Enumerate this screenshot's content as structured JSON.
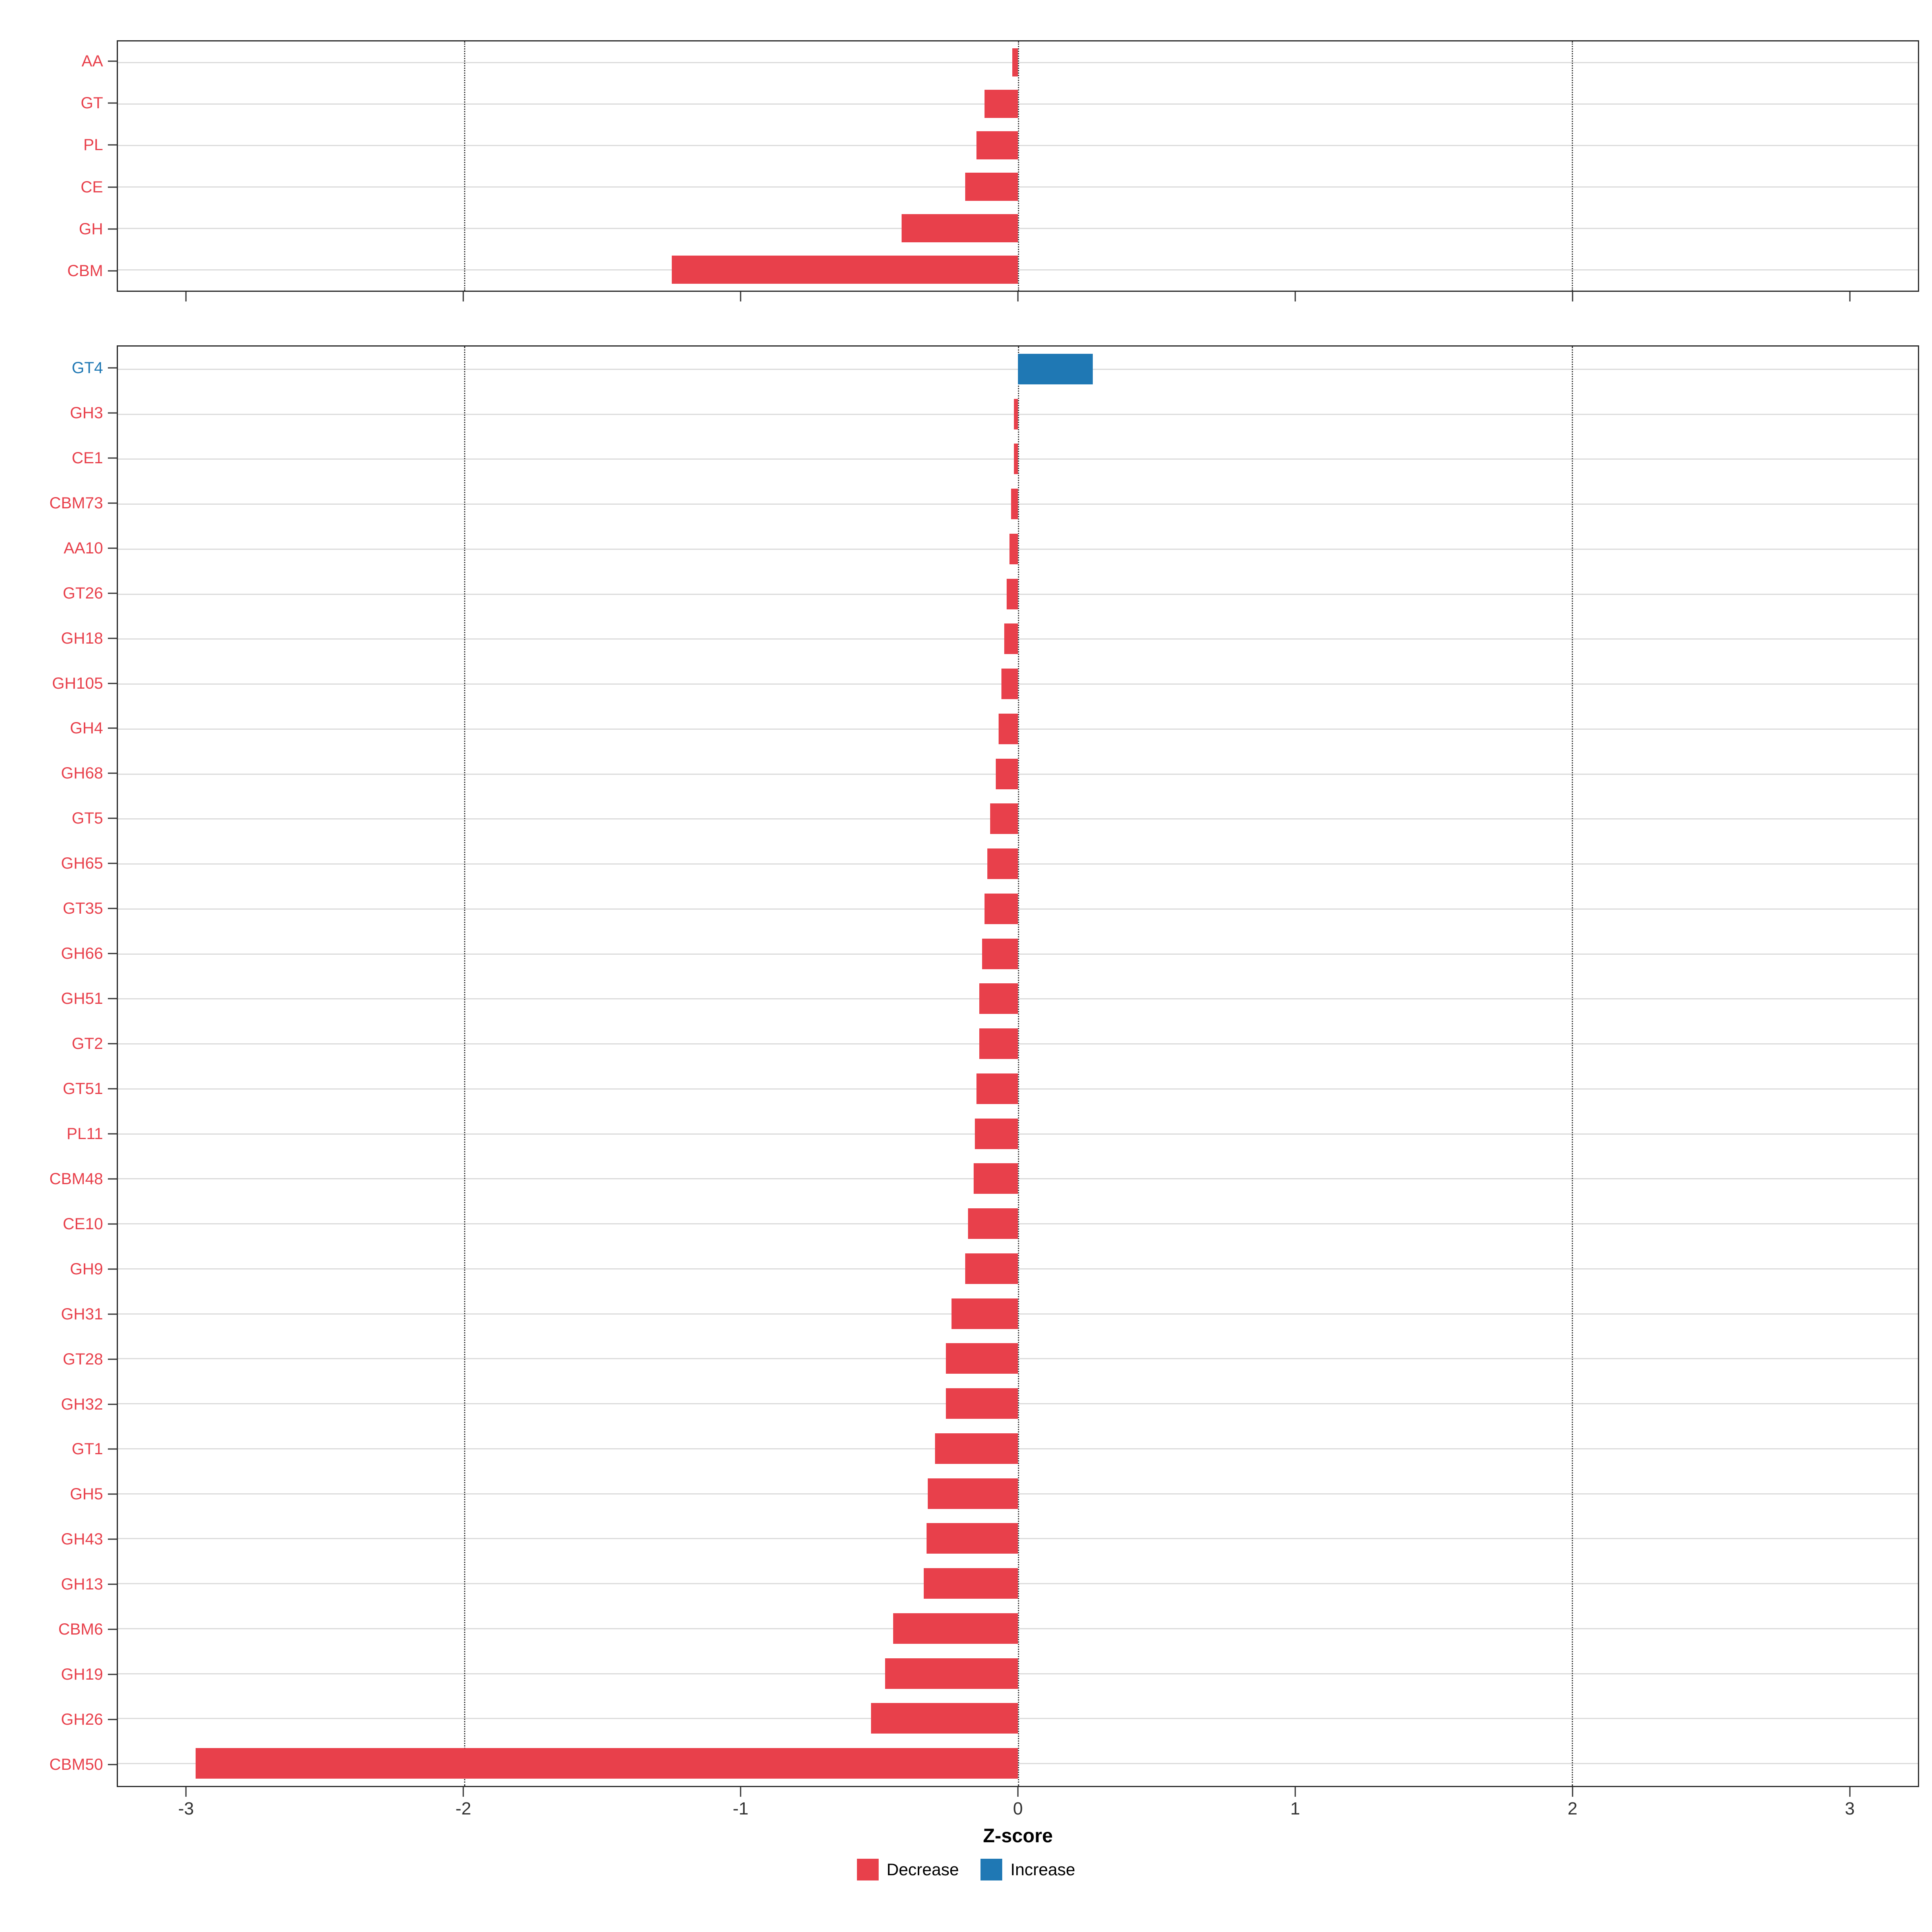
{
  "chart_data": {
    "type": "bar",
    "orientation": "horizontal",
    "xlabel": "Z-score",
    "xlim": [
      -3.25,
      3.25
    ],
    "xticks": [
      -3,
      -2,
      -1,
      0,
      1,
      2,
      3
    ],
    "reference_lines": [
      -2,
      0,
      2
    ],
    "grid": "horizontal-only",
    "legend_position": "bottom",
    "colors": {
      "decrease": "#E8404B",
      "increase": "#1F78B4"
    },
    "legend": [
      {
        "label": "Decrease",
        "color": "#E8404B"
      },
      {
        "label": "Increase",
        "color": "#1F78B4"
      }
    ],
    "panels": [
      {
        "name": "cazyme-class-panel",
        "categories": [
          "AA",
          "GT",
          "PL",
          "CE",
          "GH",
          "CBM"
        ],
        "values": [
          -0.02,
          -0.12,
          -0.15,
          -0.19,
          -0.42,
          -1.25
        ]
      },
      {
        "name": "cazyme-family-panel",
        "categories": [
          "GT4",
          "GH3",
          "CE1",
          "CBM73",
          "AA10",
          "GT26",
          "GH18",
          "GH105",
          "GH4",
          "GH68",
          "GT5",
          "GH65",
          "GT35",
          "GH66",
          "GH51",
          "GT2",
          "GT51",
          "PL11",
          "CBM48",
          "CE10",
          "GH9",
          "GH31",
          "GT28",
          "GH32",
          "GT1",
          "GH5",
          "GH43",
          "GH13",
          "CBM6",
          "GH19",
          "GH26",
          "CBM50"
        ],
        "values": [
          0.27,
          -0.015,
          -0.015,
          -0.025,
          -0.03,
          -0.04,
          -0.05,
          -0.06,
          -0.07,
          -0.08,
          -0.1,
          -0.11,
          -0.12,
          -0.13,
          -0.14,
          -0.14,
          -0.15,
          -0.155,
          -0.16,
          -0.18,
          -0.19,
          -0.24,
          -0.26,
          -0.26,
          -0.3,
          -0.325,
          -0.33,
          -0.34,
          -0.45,
          -0.48,
          -0.53,
          -2.97
        ]
      }
    ]
  }
}
